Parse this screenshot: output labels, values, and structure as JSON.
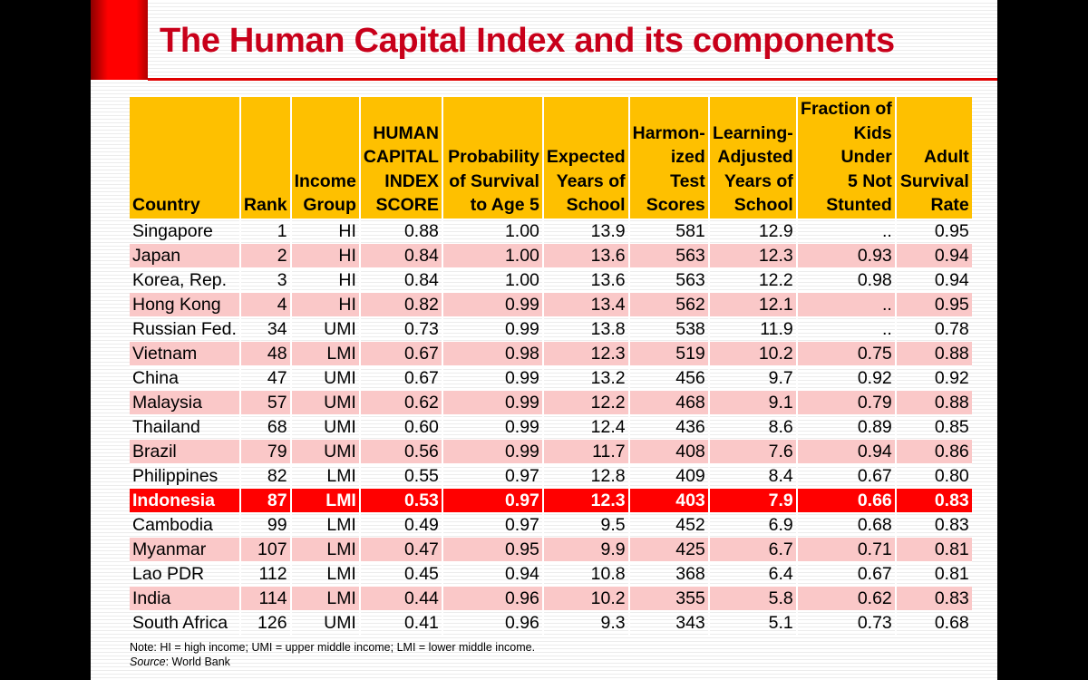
{
  "title": "The Human Capital Index and its components",
  "colors": {
    "title": "#c8001a",
    "header": "#fec000",
    "alt_row": "#fac8c8",
    "highlight": "#ff0000"
  },
  "table": {
    "headers": [
      "Country",
      "Rank",
      "Income\nGroup",
      "HUMAN\nCAPITAL\nINDEX\nSCORE",
      "Probability\nof Survival\nto Age 5",
      "Expected\nYears of\nSchool",
      "Harmon-\nized Test\nScores",
      "Learning-\nAdjusted\nYears of\nSchool",
      "Fraction of\nKids Under\n5 Not\nStunted",
      "Adult\nSurvival\nRate"
    ],
    "highlight_row": "Indonesia",
    "rows": [
      [
        "Singapore",
        "1",
        "HI",
        "0.88",
        "1.00",
        "13.9",
        "581",
        "12.9",
        "..",
        "0.95"
      ],
      [
        "Japan",
        "2",
        "HI",
        "0.84",
        "1.00",
        "13.6",
        "563",
        "12.3",
        "0.93",
        "0.94"
      ],
      [
        "Korea, Rep.",
        "3",
        "HI",
        "0.84",
        "1.00",
        "13.6",
        "563",
        "12.2",
        "0.98",
        "0.94"
      ],
      [
        "Hong Kong",
        "4",
        "HI",
        "0.82",
        "0.99",
        "13.4",
        "562",
        "12.1",
        "..",
        "0.95"
      ],
      [
        "Russian Fed.",
        "34",
        "UMI",
        "0.73",
        "0.99",
        "13.8",
        "538",
        "11.9",
        "..",
        "0.78"
      ],
      [
        "Vietnam",
        "48",
        "LMI",
        "0.67",
        "0.98",
        "12.3",
        "519",
        "10.2",
        "0.75",
        "0.88"
      ],
      [
        "China",
        "47",
        "UMI",
        "0.67",
        "0.99",
        "13.2",
        "456",
        "9.7",
        "0.92",
        "0.92"
      ],
      [
        "Malaysia",
        "57",
        "UMI",
        "0.62",
        "0.99",
        "12.2",
        "468",
        "9.1",
        "0.79",
        "0.88"
      ],
      [
        "Thailand",
        "68",
        "UMI",
        "0.60",
        "0.99",
        "12.4",
        "436",
        "8.6",
        "0.89",
        "0.85"
      ],
      [
        "Brazil",
        "79",
        "UMI",
        "0.56",
        "0.99",
        "11.7",
        "408",
        "7.6",
        "0.94",
        "0.86"
      ],
      [
        "Philippines",
        "82",
        "LMI",
        "0.55",
        "0.97",
        "12.8",
        "409",
        "8.4",
        "0.67",
        "0.80"
      ],
      [
        "Indonesia",
        "87",
        "LMI",
        "0.53",
        "0.97",
        "12.3",
        "403",
        "7.9",
        "0.66",
        "0.83"
      ],
      [
        "Cambodia",
        "99",
        "LMI",
        "0.49",
        "0.97",
        "9.5",
        "452",
        "6.9",
        "0.68",
        "0.83"
      ],
      [
        "Myanmar",
        "107",
        "LMI",
        "0.47",
        "0.95",
        "9.9",
        "425",
        "6.7",
        "0.71",
        "0.81"
      ],
      [
        "Lao PDR",
        "112",
        "LMI",
        "0.45",
        "0.94",
        "10.8",
        "368",
        "6.4",
        "0.67",
        "0.81"
      ],
      [
        "India",
        "114",
        "LMI",
        "0.44",
        "0.96",
        "10.2",
        "355",
        "5.8",
        "0.62",
        "0.83"
      ],
      [
        "South Africa",
        "126",
        "UMI",
        "0.41",
        "0.96",
        "9.3",
        "343",
        "5.1",
        "0.73",
        "0.68"
      ]
    ]
  },
  "note": "Note: HI = high income; UMI = upper middle income; LMI = lower middle income.",
  "source_label": "Source",
  "source_value": ": World Bank"
}
